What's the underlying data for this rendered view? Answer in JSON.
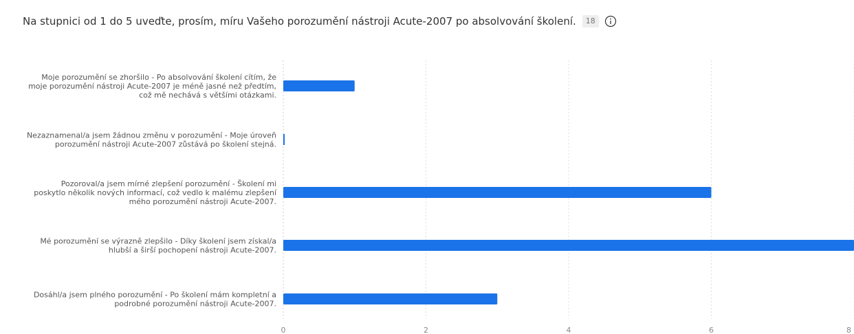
{
  "header": {
    "title": "Na stupnici od 1 do 5 uveďte, prosím, míru Vašeho porozumění nástroji Acute-2007 po absolvování školení.",
    "response_count": "18"
  },
  "icons": {
    "info": "info-circle-icon"
  },
  "colors": {
    "bar": "#1a73e8",
    "grid": "#dddddd"
  },
  "chart_data": {
    "type": "bar",
    "orientation": "horizontal",
    "title": "Na stupnici od 1 do 5 uveďte, prosím, míru Vašeho porozumění nástroji Acute-2007 po absolvování školení.",
    "xlabel": "",
    "ylabel": "",
    "categories": [
      "Moje porozumění se zhoršilo - Po absolvování školení cítím, že moje porozumění nástroji Acute-2007 je méně jasné než předtím, což mě nechává s většími otázkami.",
      "Nezaznamenal/a jsem žádnou změnu v porozumění - Moje úroveň porozumění nástroji Acute-2007 zůstává po školení stejná.",
      "Pozoroval/a jsem mírné zlepšení porozumění - Školení mi poskytlo několik nových informací, což vedlo k malému zlepšení mého porozumění nástroji Acute-2007.",
      "Mé porozumění se výrazně zlepšilo - Díky školení jsem získal/a hlubší a širší pochopení nástroji Acute-2007.",
      "Dosáhl/a jsem plného porozumění - Po školení mám kompletní a podrobné porozumění nástroji Acute-2007."
    ],
    "category_lines": [
      [
        "Moje porozumění se zhoršilo - Po absolvování školení cítím, že",
        "moje porozumění nástroji Acute-2007 je méně jasné než předtím,",
        "což mě nechává s většími otázkami."
      ],
      [
        "Nezaznamenal/a jsem žádnou změnu v porozumění - Moje úroveň",
        "porozumění nástroji Acute-2007 zůstává po školení stejná."
      ],
      [
        "Pozoroval/a jsem mírné zlepšení porozumění - Školení mi",
        "poskytlo několik nových informací, což vedlo k malému zlepšení",
        "mého porozumění nástroji Acute-2007."
      ],
      [
        "Mé porozumění se výrazně zlepšilo - Díky školení jsem získal/a",
        "hlubší a širší pochopení nástroji Acute-2007."
      ],
      [
        "Dosáhl/a jsem plného porozumění - Po školení mám kompletní a",
        "podrobné porozumění nástroji Acute-2007."
      ]
    ],
    "values": [
      1,
      0,
      6,
      8,
      3
    ],
    "xlim": [
      0,
      8
    ],
    "xticks": [
      "0",
      "2",
      "4",
      "6",
      "8"
    ],
    "grid": true
  }
}
